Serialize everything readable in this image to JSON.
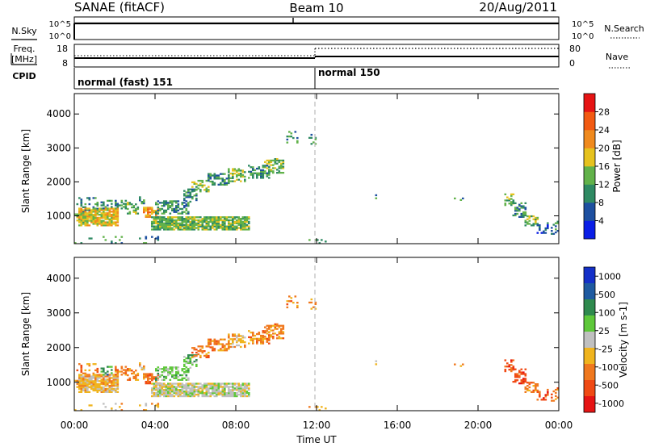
{
  "header": {
    "station": "SANAE (fitACF)",
    "beam": "Beam 10",
    "date": "20/Aug/2011"
  },
  "ops": {
    "nsky_label": "N.Sky",
    "nsearch_label": "N.Search",
    "freq_label_line1": "Freq.",
    "freq_label_line2": "[MHz]",
    "nave_label": "Nave",
    "cpid_label": "CPID",
    "nsky_ticks": [
      "10^5",
      "10^0"
    ],
    "nsearch_ticks": [
      "10^5",
      "10^0"
    ],
    "freq_ticks": [
      "18",
      "8"
    ],
    "nave_ticks": [
      "80",
      "0"
    ],
    "programs": [
      {
        "name": "normal (fast) 151",
        "start_hour": 0,
        "end_hour": 12
      },
      {
        "name": "normal 150",
        "start_hour": 12,
        "end_hour": 24
      }
    ]
  },
  "colors": {
    "power": [
      "#0a1ee6",
      "#1e50a0",
      "#2f8a63",
      "#62b24a",
      "#e6c21e",
      "#f08a1e",
      "#f25a12",
      "#e61414"
    ],
    "velocity": [
      "#1430c8",
      "#1e5aa0",
      "#2f8a4e",
      "#5ec83a",
      "#c0c0c0",
      "#f0b41e",
      "#f0781e",
      "#f04a14",
      "#e61414"
    ]
  },
  "chart_data": [
    {
      "type": "heatmap",
      "name": "power",
      "xlabel": "",
      "ylabel": "Slant Range [km]",
      "xlim": [
        0,
        24
      ],
      "ylim": [
        180,
        4600
      ],
      "yticks": [
        "1000",
        "2000",
        "3000",
        "4000"
      ],
      "colorbar": {
        "label": "Power [dB]",
        "ticks": [
          "4",
          "8",
          "12",
          "16",
          "20",
          "24",
          "28"
        ]
      },
      "vertical_marker_hour": 12
    },
    {
      "type": "heatmap",
      "name": "velocity",
      "xlabel": "Time UT",
      "ylabel": "Slant Range [km]",
      "xlim": [
        0,
        24
      ],
      "ylim": [
        180,
        4600
      ],
      "xticks": [
        "00:00",
        "04:00",
        "08:00",
        "12:00",
        "16:00",
        "20:00",
        "00:00"
      ],
      "yticks": [
        "1000",
        "2000",
        "3000",
        "4000"
      ],
      "colorbar": {
        "label": "Velocity [m s-1]",
        "ticks": [
          "1000",
          "500",
          "100",
          "25",
          "-25",
          "-100",
          "-500",
          "-1000"
        ]
      },
      "vertical_marker_hour": 12
    }
  ],
  "scatter_regions": [
    {
      "t0": 0.0,
      "t1": 4.4,
      "r0": 180,
      "r1": 400,
      "density": 0.12,
      "pk": 2,
      "vk": 5
    },
    {
      "t0": 0.0,
      "t1": 1.2,
      "r0": 1100,
      "r1": 1550,
      "density": 0.35,
      "pk": 2,
      "vk": 6
    },
    {
      "t0": 0.0,
      "t1": 0.8,
      "r0": 800,
      "r1": 1050,
      "density": 0.6,
      "pk": 3,
      "vk": 5
    },
    {
      "t0": 0.2,
      "t1": 2.2,
      "r0": 700,
      "r1": 1200,
      "density": 0.85,
      "pk": 4,
      "vk": 5
    },
    {
      "t0": 1.3,
      "t1": 1.9,
      "r0": 1200,
      "r1": 1450,
      "density": 0.4,
      "pk": 2,
      "vk": 2
    },
    {
      "t0": 2.0,
      "t1": 2.6,
      "r0": 1200,
      "r1": 1450,
      "density": 0.35,
      "pk": 2,
      "vk": 6
    },
    {
      "t0": 2.6,
      "t1": 3.2,
      "r0": 1050,
      "r1": 1400,
      "density": 0.5,
      "pk": 3,
      "vk": 6
    },
    {
      "t0": 3.2,
      "t1": 3.5,
      "r0": 1350,
      "r1": 1600,
      "density": 0.45,
      "pk": 2,
      "vk": 5
    },
    {
      "t0": 3.4,
      "t1": 4.2,
      "r0": 950,
      "r1": 1250,
      "density": 0.6,
      "pk": 5,
      "vk": 6
    },
    {
      "t0": 4.0,
      "t1": 5.6,
      "r0": 1050,
      "r1": 1450,
      "density": 0.55,
      "pk": 2,
      "vk": 3
    },
    {
      "t0": 5.4,
      "t1": 6.0,
      "r0": 1400,
      "r1": 1800,
      "density": 0.45,
      "pk": 2,
      "vk": 3
    },
    {
      "t0": 3.8,
      "t1": 8.6,
      "r0": 580,
      "r1": 950,
      "density": 0.85,
      "pk": 3,
      "vk": 4
    },
    {
      "t0": 5.8,
      "t1": 6.6,
      "r0": 1700,
      "r1": 2050,
      "density": 0.5,
      "pk": 3,
      "vk": 6
    },
    {
      "t0": 6.6,
      "t1": 7.6,
      "r0": 1900,
      "r1": 2250,
      "density": 0.6,
      "pk": 2,
      "vk": 6
    },
    {
      "t0": 7.6,
      "t1": 8.4,
      "r0": 2000,
      "r1": 2400,
      "density": 0.5,
      "pk": 3,
      "vk": 5
    },
    {
      "t0": 8.6,
      "t1": 9.6,
      "r0": 2100,
      "r1": 2500,
      "density": 0.5,
      "pk": 2,
      "vk": 6
    },
    {
      "t0": 9.4,
      "t1": 10.3,
      "r0": 2250,
      "r1": 2700,
      "density": 0.5,
      "pk": 3,
      "vk": 6
    },
    {
      "t0": 10.5,
      "t1": 11.0,
      "r0": 3050,
      "r1": 3500,
      "density": 0.3,
      "pk": 2,
      "vk": 6
    },
    {
      "t0": 11.6,
      "t1": 11.9,
      "r0": 3100,
      "r1": 3450,
      "density": 0.3,
      "pk": 2,
      "vk": 6
    },
    {
      "t0": 11.6,
      "t1": 12.4,
      "r0": 180,
      "r1": 350,
      "density": 0.15,
      "pk": 2,
      "vk": 5
    },
    {
      "t0": 14.8,
      "t1": 15.0,
      "r0": 1500,
      "r1": 1600,
      "density": 0.5,
      "pk": 2,
      "vk": 5
    },
    {
      "t0": 18.8,
      "t1": 19.3,
      "r0": 1450,
      "r1": 1550,
      "density": 0.35,
      "pk": 2,
      "vk": 6
    },
    {
      "t0": 21.3,
      "t1": 21.8,
      "r0": 1300,
      "r1": 1650,
      "density": 0.5,
      "pk": 3,
      "vk": 7
    },
    {
      "t0": 21.7,
      "t1": 22.4,
      "r0": 950,
      "r1": 1400,
      "density": 0.55,
      "pk": 2,
      "vk": 7
    },
    {
      "t0": 22.3,
      "t1": 23.0,
      "r0": 700,
      "r1": 1000,
      "density": 0.55,
      "pk": 3,
      "vk": 6
    },
    {
      "t0": 22.9,
      "t1": 23.5,
      "r0": 480,
      "r1": 750,
      "density": 0.5,
      "pk": 1,
      "vk": 7
    },
    {
      "t0": 23.4,
      "t1": 24.0,
      "r0": 450,
      "r1": 850,
      "density": 0.3,
      "pk": 2,
      "vk": 6
    }
  ]
}
